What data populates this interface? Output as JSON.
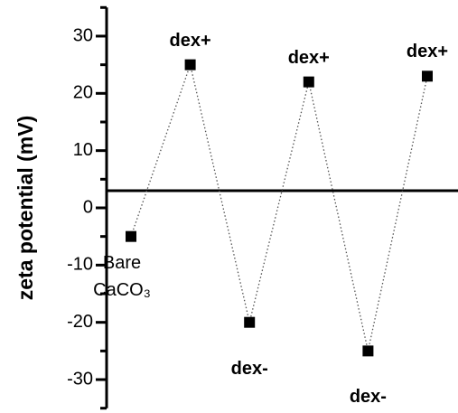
{
  "chart_data": {
    "type": "line",
    "ylabel": "zeta potential (mV)",
    "categories": [
      "Bare CaCO₃",
      "dex+",
      "dex-",
      "dex+",
      "dex-",
      "dex+"
    ],
    "values": [
      -5,
      25,
      -20,
      22,
      -25,
      23
    ],
    "color": "#000000",
    "ylim": [
      -35,
      35
    ],
    "yticks": [
      -30,
      -20,
      -10,
      0,
      10,
      20,
      30
    ],
    "yminorticks": [
      -35,
      -25,
      -15,
      -5,
      5,
      15,
      25,
      35
    ],
    "hline": 3
  }
}
